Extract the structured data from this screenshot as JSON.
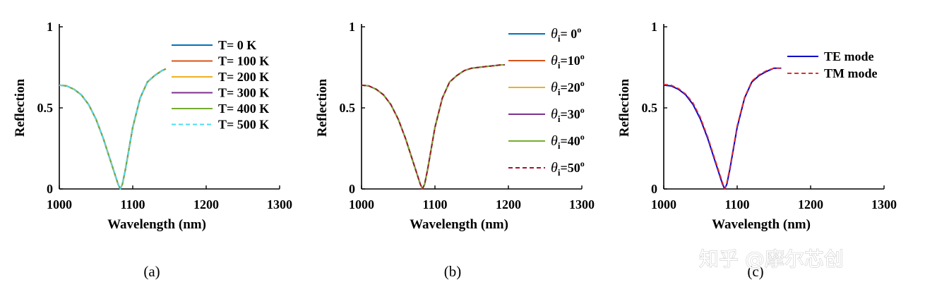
{
  "chart_data": [
    {
      "type": "line",
      "id": "a",
      "caption": "(a)",
      "xlabel": "Wavelength (nm)",
      "ylabel": "Reflection",
      "xlim": [
        1000,
        1300
      ],
      "ylim": [
        0,
        1
      ],
      "xticks": [
        "1000",
        "1100",
        "1200",
        "1300"
      ],
      "yticks": [
        "0",
        "0.5",
        "1"
      ],
      "grid": false,
      "legend_position": "top-right",
      "x": [
        1000,
        1010,
        1020,
        1030,
        1040,
        1050,
        1060,
        1070,
        1075,
        1080,
        1083,
        1086,
        1090,
        1095,
        1100,
        1110,
        1120,
        1130,
        1140,
        1145
      ],
      "series": [
        {
          "name": "T=   0  K",
          "color": "#0072BD",
          "style": "solid",
          "y": [
            0.64,
            0.635,
            0.615,
            0.58,
            0.52,
            0.43,
            0.31,
            0.17,
            0.1,
            0.03,
            0.0,
            0.03,
            0.12,
            0.25,
            0.38,
            0.56,
            0.66,
            0.7,
            0.73,
            0.74
          ]
        },
        {
          "name": "T= 100 K",
          "color": "#D95319",
          "style": "solid",
          "y": [
            0.64,
            0.635,
            0.615,
            0.58,
            0.52,
            0.43,
            0.31,
            0.17,
            0.1,
            0.03,
            0.0,
            0.03,
            0.12,
            0.25,
            0.38,
            0.56,
            0.66,
            0.7,
            0.73,
            0.74
          ]
        },
        {
          "name": "T= 200 K",
          "color": "#EDB120",
          "style": "solid",
          "y": [
            0.64,
            0.635,
            0.615,
            0.58,
            0.52,
            0.43,
            0.31,
            0.17,
            0.1,
            0.03,
            0.0,
            0.03,
            0.12,
            0.25,
            0.38,
            0.56,
            0.66,
            0.7,
            0.73,
            0.74
          ]
        },
        {
          "name": "T= 300 K",
          "color": "#7E2F8E",
          "style": "solid",
          "y": [
            0.64,
            0.635,
            0.615,
            0.58,
            0.52,
            0.43,
            0.31,
            0.17,
            0.1,
            0.03,
            0.0,
            0.03,
            0.12,
            0.25,
            0.38,
            0.56,
            0.66,
            0.7,
            0.73,
            0.74
          ]
        },
        {
          "name": "T= 400 K",
          "color": "#77AC30",
          "style": "solid",
          "y": [
            0.64,
            0.635,
            0.615,
            0.58,
            0.52,
            0.43,
            0.31,
            0.17,
            0.1,
            0.03,
            0.0,
            0.03,
            0.12,
            0.25,
            0.38,
            0.56,
            0.66,
            0.7,
            0.73,
            0.74
          ]
        },
        {
          "name": "T= 500 K",
          "color": "#4DDCF0",
          "style": "dashed",
          "y": [
            0.64,
            0.635,
            0.615,
            0.58,
            0.52,
            0.43,
            0.31,
            0.17,
            0.1,
            0.03,
            0.0,
            0.03,
            0.12,
            0.25,
            0.38,
            0.56,
            0.66,
            0.7,
            0.73,
            0.74
          ]
        }
      ]
    },
    {
      "type": "line",
      "id": "b",
      "caption": "(b)",
      "xlabel": "Wavelength (nm)",
      "ylabel": "Reflection",
      "xlim": [
        1000,
        1300
      ],
      "ylim": [
        0,
        1
      ],
      "xticks": [
        "1000",
        "1100",
        "1200",
        "1300"
      ],
      "yticks": [
        "0",
        "0.5",
        "1"
      ],
      "grid": false,
      "legend_position": "top-right",
      "x": [
        1000,
        1010,
        1020,
        1030,
        1040,
        1050,
        1060,
        1070,
        1075,
        1080,
        1083,
        1086,
        1090,
        1095,
        1100,
        1110,
        1120,
        1130,
        1140,
        1150,
        1160,
        1170,
        1180,
        1190,
        1195
      ],
      "series": [
        {
          "name": "θi= 0o",
          "symbol": "θ",
          "sub": "i",
          "angle": "0",
          "sup": "o",
          "color": "#0072BD",
          "style": "solid",
          "y": [
            0.64,
            0.635,
            0.615,
            0.58,
            0.52,
            0.43,
            0.31,
            0.17,
            0.1,
            0.03,
            0.0,
            0.03,
            0.12,
            0.25,
            0.38,
            0.56,
            0.66,
            0.7,
            0.73,
            0.745,
            0.75,
            0.755,
            0.76,
            0.765,
            0.765
          ]
        },
        {
          "name": "θi=10o",
          "symbol": "θ",
          "sub": "i",
          "angle": "10",
          "sup": "o",
          "color": "#D95319",
          "style": "solid",
          "y": [
            0.64,
            0.635,
            0.615,
            0.58,
            0.52,
            0.43,
            0.31,
            0.17,
            0.1,
            0.03,
            0.0,
            0.03,
            0.12,
            0.25,
            0.38,
            0.56,
            0.66,
            0.7,
            0.73,
            0.745,
            0.75,
            0.755,
            0.76,
            0.765,
            0.765
          ]
        },
        {
          "name": "θi=20o",
          "symbol": "θ",
          "sub": "i",
          "angle": "20",
          "sup": "o",
          "color": "#EDB120",
          "style": "solid",
          "y": [
            0.64,
            0.635,
            0.615,
            0.58,
            0.52,
            0.43,
            0.31,
            0.17,
            0.1,
            0.03,
            0.0,
            0.03,
            0.12,
            0.25,
            0.38,
            0.56,
            0.66,
            0.7,
            0.73,
            0.745,
            0.75,
            0.755,
            0.76,
            0.765,
            0.765
          ]
        },
        {
          "name": "θi=30o",
          "symbol": "θ",
          "sub": "i",
          "angle": "30",
          "sup": "o",
          "color": "#7E2F8E",
          "style": "solid",
          "y": [
            0.64,
            0.635,
            0.615,
            0.58,
            0.52,
            0.43,
            0.31,
            0.17,
            0.1,
            0.03,
            0.0,
            0.03,
            0.12,
            0.25,
            0.38,
            0.56,
            0.66,
            0.7,
            0.73,
            0.745,
            0.75,
            0.755,
            0.76,
            0.765,
            0.765
          ]
        },
        {
          "name": "θi=40o",
          "symbol": "θ",
          "sub": "i",
          "angle": "40",
          "sup": "o",
          "color": "#77AC30",
          "style": "solid",
          "y": [
            0.64,
            0.635,
            0.615,
            0.58,
            0.52,
            0.43,
            0.31,
            0.17,
            0.1,
            0.03,
            0.0,
            0.03,
            0.12,
            0.25,
            0.38,
            0.56,
            0.66,
            0.7,
            0.73,
            0.745,
            0.75,
            0.755,
            0.76,
            0.765,
            0.765
          ]
        },
        {
          "name": "θi=50o",
          "symbol": "θ",
          "sub": "i",
          "angle": "50",
          "sup": "o",
          "color": "#A2142F",
          "style": "dashed",
          "y": [
            0.64,
            0.635,
            0.615,
            0.58,
            0.52,
            0.43,
            0.31,
            0.17,
            0.1,
            0.03,
            0.0,
            0.03,
            0.12,
            0.25,
            0.38,
            0.56,
            0.66,
            0.7,
            0.73,
            0.745,
            0.75,
            0.755,
            0.76,
            0.765,
            0.765
          ]
        }
      ]
    },
    {
      "type": "line",
      "id": "c",
      "caption": "(c)",
      "xlabel": "Wavelength (nm)",
      "ylabel": "Reflection",
      "xlim": [
        1000,
        1300
      ],
      "ylim": [
        0,
        1
      ],
      "xticks": [
        "1000",
        "1100",
        "1200",
        "1300"
      ],
      "yticks": [
        "0",
        "0.5",
        "1"
      ],
      "grid": false,
      "legend_position": "top-right",
      "x": [
        1000,
        1010,
        1020,
        1030,
        1040,
        1050,
        1060,
        1070,
        1075,
        1080,
        1083,
        1086,
        1090,
        1095,
        1100,
        1110,
        1120,
        1130,
        1140,
        1150,
        1155,
        1160
      ],
      "series": [
        {
          "name": "TE  mode",
          "color": "#0000CC",
          "style": "solid",
          "y": [
            0.64,
            0.635,
            0.615,
            0.58,
            0.52,
            0.43,
            0.31,
            0.17,
            0.1,
            0.03,
            0.0,
            0.03,
            0.12,
            0.25,
            0.38,
            0.56,
            0.66,
            0.7,
            0.725,
            0.745,
            0.745,
            0.745
          ]
        },
        {
          "name": "TM mode",
          "color": "#E03030",
          "style": "dashed",
          "y": [
            0.645,
            0.64,
            0.62,
            0.585,
            0.53,
            0.44,
            0.32,
            0.18,
            0.11,
            0.04,
            0.0,
            0.04,
            0.13,
            0.26,
            0.39,
            0.565,
            0.665,
            0.705,
            0.73,
            0.745,
            0.745,
            0.745
          ]
        }
      ]
    }
  ],
  "watermark": "知乎 @摩尔芯创"
}
